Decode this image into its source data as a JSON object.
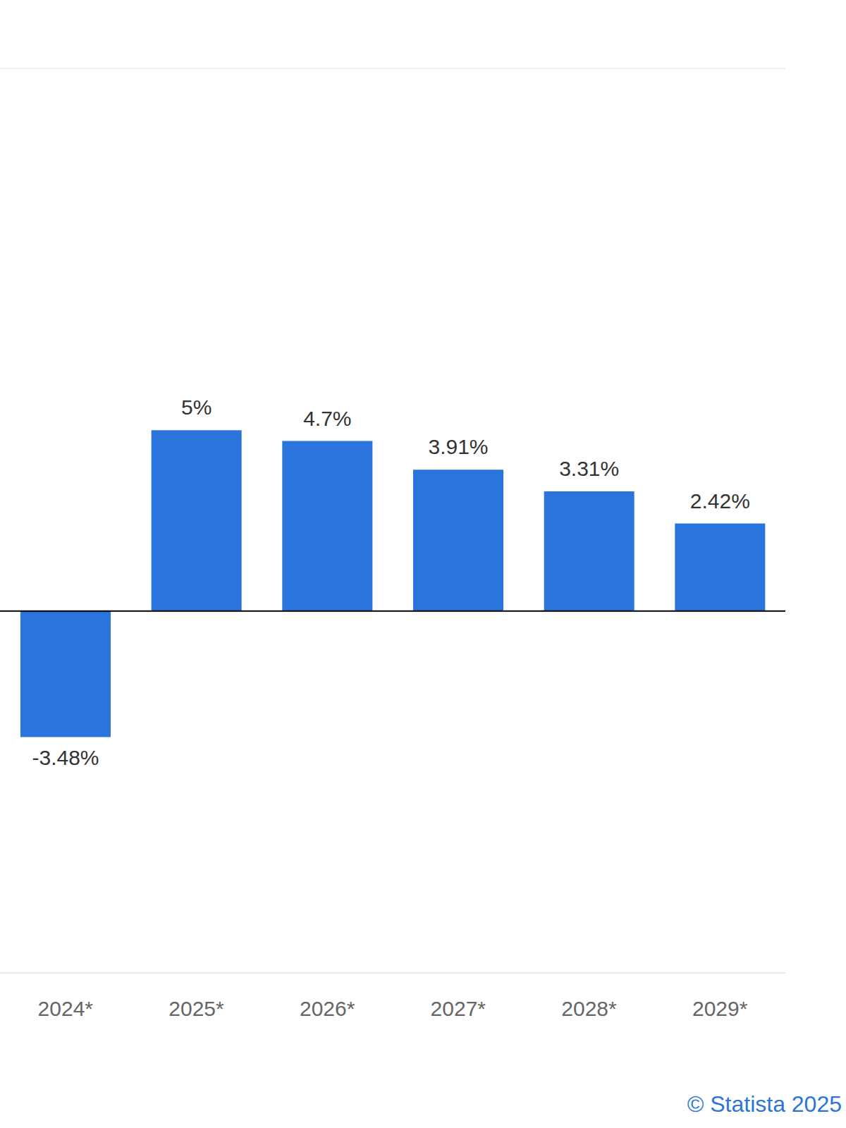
{
  "chart_data": {
    "type": "bar",
    "categories": [
      "2024*",
      "2025*",
      "2026*",
      "2027*",
      "2028*",
      "2029*"
    ],
    "values": [
      -3.48,
      5,
      4.7,
      3.91,
      3.31,
      2.42
    ],
    "value_labels": [
      "-3.48%",
      "5%",
      "4.7%",
      "3.91%",
      "3.31%",
      "2.42%"
    ],
    "color": "#2b74db",
    "ylim": [
      -10,
      15
    ],
    "yticks": [
      -10,
      -5,
      0,
      5,
      10,
      15
    ],
    "grid": true,
    "data_labels": true,
    "tick_labels": "x",
    "annotations": [
      "© Statista 2025"
    ]
  }
}
